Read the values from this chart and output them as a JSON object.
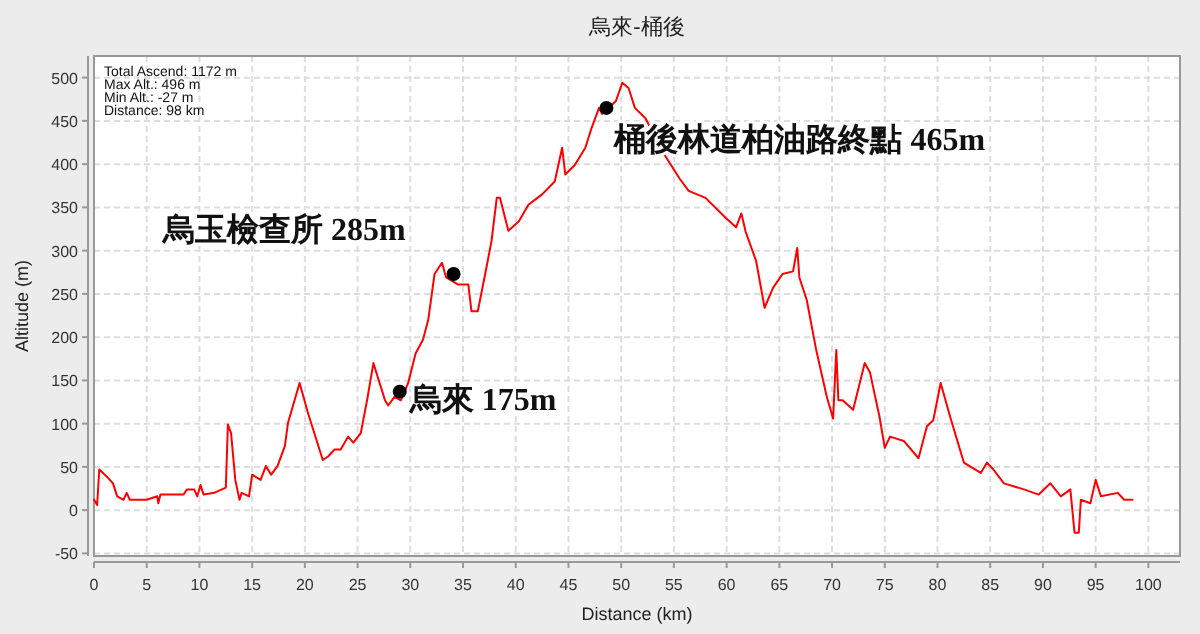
{
  "chart_data": {
    "type": "line",
    "title": "烏來-桶後",
    "xlabel": "Distance (km)",
    "ylabel": "Altitude (m)",
    "xlim": [
      0,
      103
    ],
    "xticks": [
      0,
      5,
      10,
      15,
      20,
      25,
      30,
      35,
      40,
      45,
      50,
      55,
      60,
      65,
      70,
      75,
      80,
      85,
      90,
      95,
      100
    ],
    "ylim": [
      -53,
      525
    ],
    "yticks": [
      -50,
      0,
      50,
      100,
      150,
      200,
      250,
      300,
      350,
      400,
      450,
      500
    ],
    "grid": true,
    "marker": "none",
    "line_style": "solid",
    "annotations": [
      "Total Ascend: 1172 m",
      "Max Alt.: 496 m",
      "Min Alt.: -27 m",
      "Distance: 98 km",
      {
        "text": "烏來 175m",
        "x": 29.0,
        "y": 137
      },
      {
        "text": "烏玉檢查所 285m",
        "x": 34.1,
        "y": 273
      },
      {
        "text": "桶後林道柏油路終點 465m",
        "x": 48.6,
        "y": 465
      }
    ],
    "series": [
      {
        "color": "#ff0000",
        "x": [
          0.0,
          0.3,
          0.5,
          1.2,
          1.8,
          2.2,
          2.8,
          3.1,
          3.4,
          5.0,
          6.0,
          6.1,
          6.3,
          8.5,
          8.8,
          9.5,
          9.8,
          10.1,
          10.4,
          11.4,
          12.5,
          12.7,
          13.0,
          13.4,
          13.8,
          14.0,
          14.7,
          15.0,
          15.8,
          16.3,
          16.8,
          17.4,
          18.1,
          18.4,
          19.5,
          20.3,
          21.7,
          22.2,
          22.8,
          23.4,
          24.1,
          24.6,
          25.3,
          25.9,
          26.5,
          27.6,
          27.9,
          28.5,
          29.1,
          29.8,
          30.5,
          31.2,
          31.7,
          32.3,
          33.0,
          33.4,
          34.5,
          35.5,
          35.8,
          36.4,
          37.1,
          37.7,
          38.2,
          38.5,
          39.3,
          40.3,
          41.2,
          42.5,
          43.7,
          44.4,
          44.7,
          45.6,
          46.6,
          47.2,
          47.9,
          48.2,
          49.5,
          50.1,
          50.7,
          51.3,
          52.3,
          53.9,
          55.5,
          56.4,
          58.0,
          59.9,
          60.9,
          61.4,
          61.8,
          62.8,
          63.6,
          64.4,
          65.3,
          66.3,
          66.7,
          66.9,
          67.6,
          68.5,
          69.5,
          70.1,
          70.4,
          70.6,
          71.0,
          72.0,
          73.1,
          73.6,
          74.5,
          75.0,
          75.5,
          76.8,
          78.2,
          79.0,
          79.6,
          80.3,
          81.2,
          82.5,
          84.1,
          84.7,
          85.3,
          86.3,
          88.2,
          89.6,
          90.7,
          91.7,
          92.6,
          93.0,
          93.4,
          93.6,
          94.5,
          95.0,
          95.5,
          97.1,
          97.7,
          98.5
        ],
        "values": [
          12,
          6,
          47,
          39,
          31,
          16,
          12,
          20,
          12,
          12,
          16,
          8,
          18,
          18,
          24,
          24,
          16,
          29,
          18,
          20,
          26,
          99,
          89,
          35,
          12,
          20,
          16,
          41,
          35,
          51,
          41,
          51,
          74,
          101,
          147,
          112,
          58,
          62,
          70,
          70,
          85,
          78,
          89,
          127,
          170,
          127,
          121,
          131,
          127,
          147,
          181,
          197,
          220,
          273,
          286,
          269,
          261,
          261,
          230,
          230,
          273,
          311,
          361,
          361,
          323,
          334,
          353,
          365,
          380,
          419,
          388,
          399,
          419,
          442,
          465,
          458,
          473,
          494,
          488,
          465,
          453,
          415,
          384,
          369,
          361,
          338,
          327,
          343,
          322,
          288,
          234,
          257,
          273,
          276,
          303,
          269,
          243,
          185,
          131,
          106,
          185,
          127,
          127,
          116,
          170,
          159,
          108,
          72,
          85,
          80,
          60,
          97,
          104,
          147,
          108,
          55,
          43,
          55,
          47,
          31,
          24,
          18,
          31,
          16,
          24,
          -26,
          -26,
          12,
          8,
          35,
          16,
          20,
          12,
          12
        ]
      }
    ]
  }
}
